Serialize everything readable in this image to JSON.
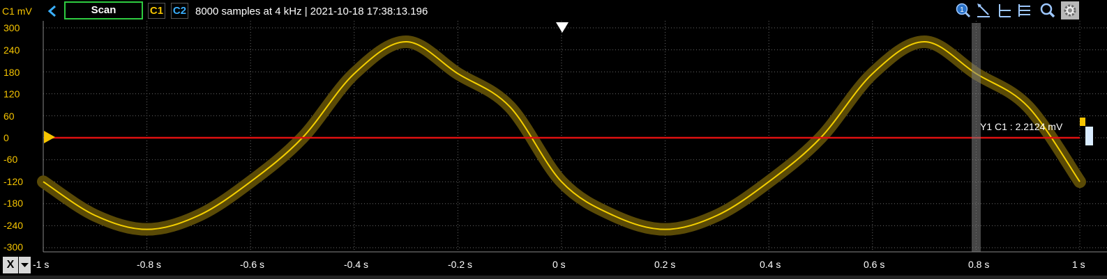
{
  "toolbar": {
    "unit_label": "C1 mV",
    "scan_label": "Scan",
    "channel_1": "C1",
    "channel_2": "C2",
    "info_text": "8000 samples at 4 kHz | 2021-10-18 17:38:13.196",
    "icons": [
      "zoom-1-icon",
      "cursor-add-icon",
      "cursor-horizontal-icon",
      "cursor-list-icon",
      "zoom-search-icon",
      "settings-icon"
    ]
  },
  "axes": {
    "y_ticks": [
      "300",
      "240",
      "180",
      "120",
      "60",
      "0",
      "-60",
      "-120",
      "-180",
      "-240",
      "-300"
    ],
    "x_ticks": [
      "-1 s",
      "-0.8 s",
      "-0.6 s",
      "-0.4 s",
      "-0.2 s",
      "0 s",
      "0.2 s",
      "0.4 s",
      "0.6 s",
      "0.8 s",
      "1 s"
    ],
    "x_button": "X"
  },
  "cursor": {
    "readout": "Y1 C1 : 2.2124 mV",
    "level": 0
  },
  "colors": {
    "trace": "#f5d000",
    "envelope": "#5a4a06",
    "cursor_line": "#e01010",
    "grid": "#6a6a6a",
    "unit": "#f5c400",
    "c2": "#3ab0ff",
    "scan_border": "#2ecc40"
  },
  "chart_data": {
    "type": "line",
    "x_range": [
      -1,
      1
    ],
    "y_range": [
      -300,
      300
    ],
    "series": [
      {
        "x": [
          -1,
          -0.9,
          -0.8,
          -0.7,
          -0.6,
          -0.5,
          -0.4,
          -0.3,
          -0.2,
          -0.1,
          0,
          0.1,
          0.2,
          0.3,
          0.4,
          0.5,
          0.6,
          0.7,
          0.8,
          0.9,
          1
        ],
        "y": [
          -120,
          -212,
          -250,
          -212,
          -120,
          0,
          175,
          262,
          175,
          85,
          -120,
          -212,
          -250,
          -212,
          -120,
          0,
          175,
          262,
          175,
          85,
          -120
        ]
      }
    ],
    "grid": true
  }
}
